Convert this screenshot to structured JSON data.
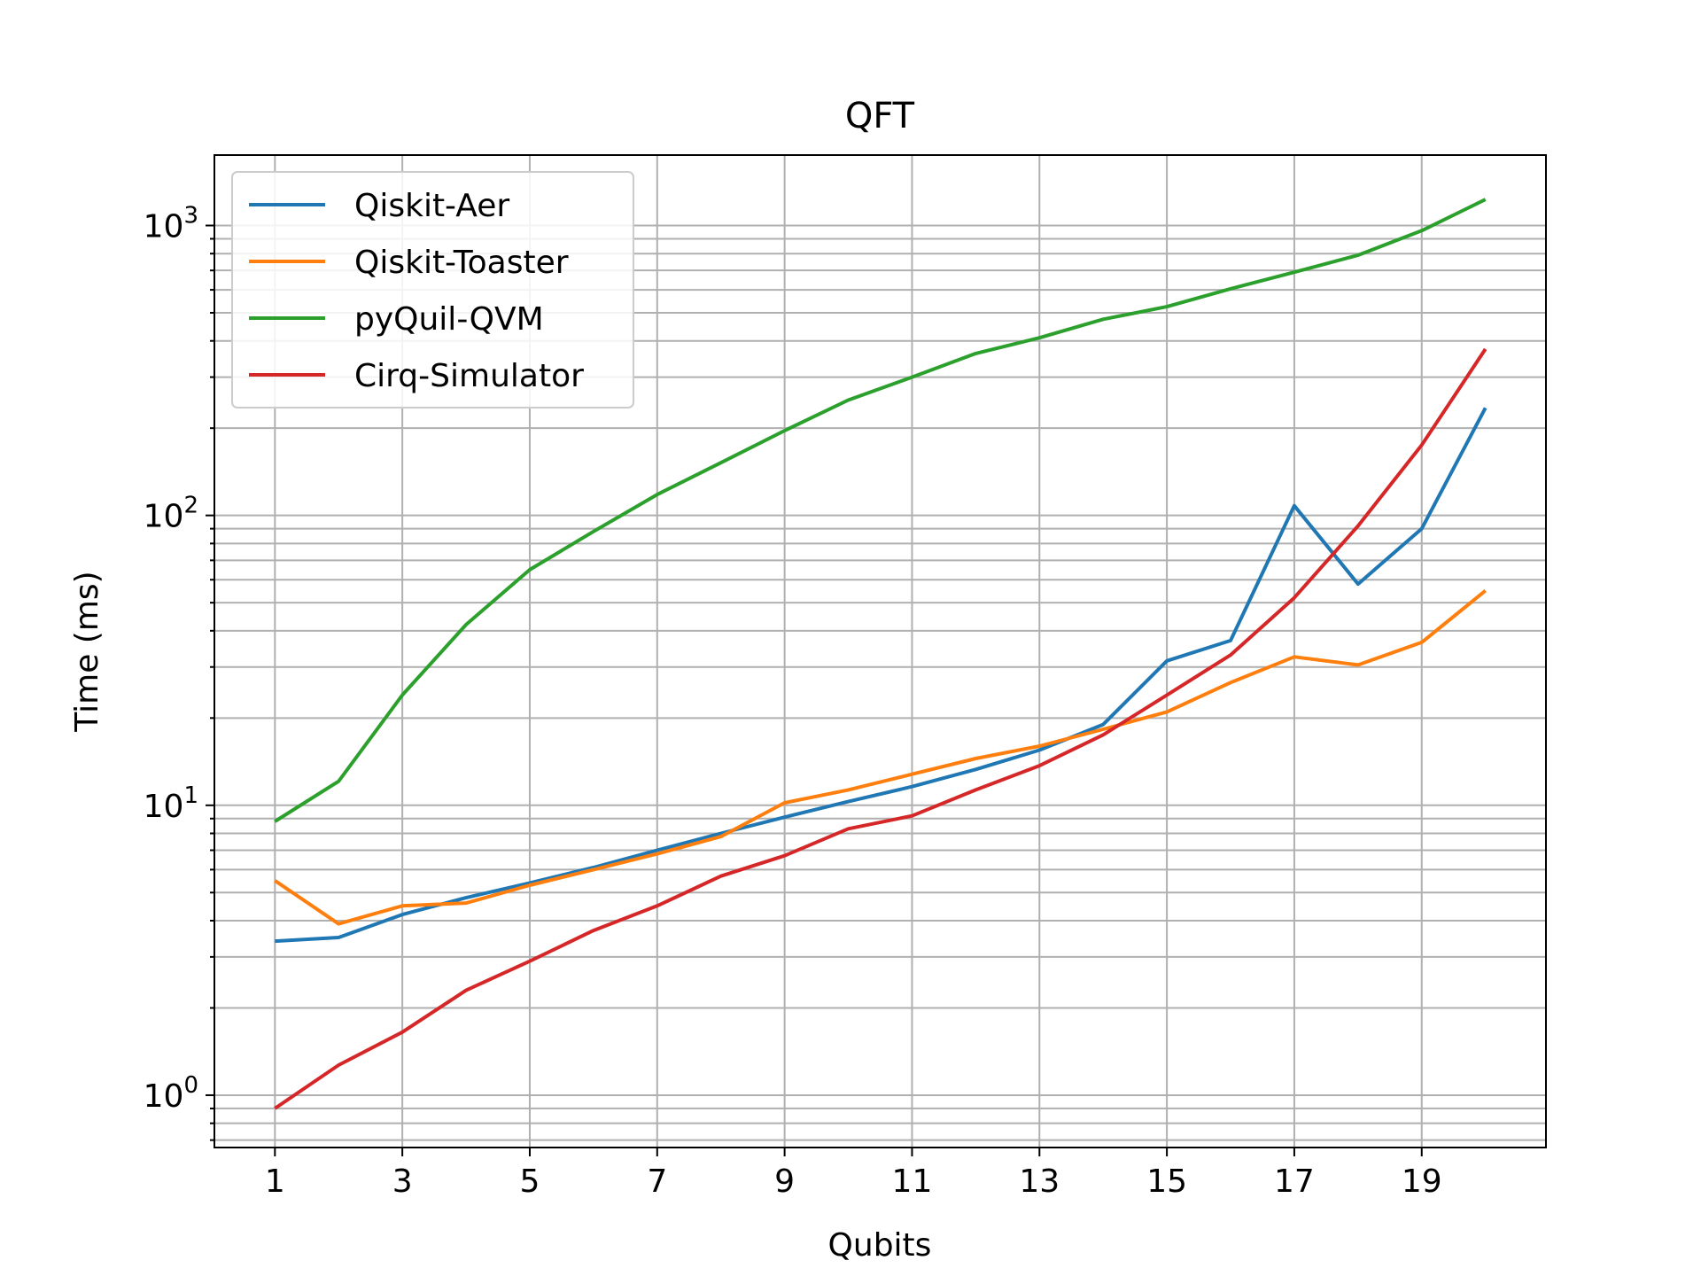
{
  "chart_data": {
    "type": "line",
    "title": "QFT",
    "xlabel": "Qubits",
    "ylabel": "Time (ms)",
    "yscale": "log",
    "xlim": [
      0.05,
      20.95
    ],
    "ylim": [
      0.66,
      1750
    ],
    "grid": true,
    "legend_position": "top-left",
    "x": [
      1,
      2,
      3,
      4,
      5,
      6,
      7,
      8,
      9,
      10,
      11,
      12,
      13,
      14,
      15,
      16,
      17,
      18,
      19,
      20
    ],
    "xticks": [
      1,
      3,
      5,
      7,
      9,
      11,
      13,
      15,
      17,
      19
    ],
    "xtick_labels": [
      "1",
      "3",
      "5",
      "7",
      "9",
      "11",
      "13",
      "15",
      "17",
      "19"
    ],
    "ytick_labels": [
      {
        "base": "10",
        "exp": "0",
        "value": 1
      },
      {
        "base": "10",
        "exp": "1",
        "value": 10
      },
      {
        "base": "10",
        "exp": "2",
        "value": 100
      },
      {
        "base": "10",
        "exp": "3",
        "value": 1000
      }
    ],
    "series": [
      {
        "name": "Qiskit-Aer",
        "color": "#1f77b4",
        "values": [
          3.4,
          3.5,
          4.2,
          4.8,
          5.4,
          6.1,
          7.0,
          8.0,
          9.1,
          10.3,
          11.6,
          13.3,
          15.5,
          19.0,
          31.5,
          37.0,
          108,
          58,
          90,
          235
        ]
      },
      {
        "name": "Qiskit-Toaster",
        "color": "#ff7f0e",
        "values": [
          5.5,
          3.9,
          4.5,
          4.6,
          5.3,
          6.0,
          6.8,
          7.8,
          10.2,
          11.3,
          12.8,
          14.5,
          16.0,
          18.3,
          21.0,
          26.5,
          32.5,
          30.5,
          36.5,
          55
        ]
      },
      {
        "name": "pyQuil-QVM",
        "color": "#2ca02c",
        "values": [
          8.8,
          12.1,
          24.0,
          42.0,
          65.0,
          88.0,
          118,
          152,
          196,
          250,
          300,
          362,
          410,
          475,
          525,
          605,
          690,
          790,
          960,
          1230
        ]
      },
      {
        "name": "Cirq-Simulator",
        "color": "#d62728",
        "values": [
          0.9,
          1.27,
          1.65,
          2.3,
          2.9,
          3.7,
          4.5,
          5.7,
          6.7,
          8.3,
          9.2,
          11.3,
          13.7,
          17.5,
          24.0,
          33.0,
          52.0,
          92.0,
          175,
          375
        ]
      }
    ]
  }
}
